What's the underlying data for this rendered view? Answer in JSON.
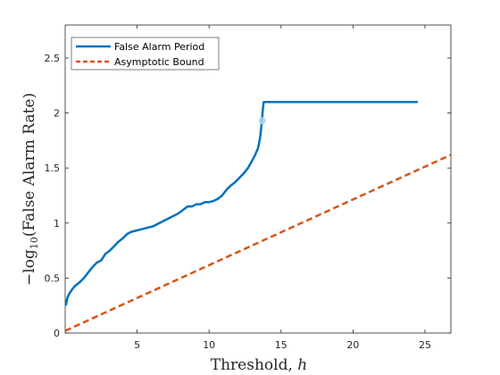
{
  "chart_data": {
    "type": "line",
    "title": "",
    "xlabel": "Threshold, ",
    "xlabel_var": "h",
    "ylabel_prefix": "−log",
    "ylabel_sub": "10",
    "ylabel_rest": "(False Alarm Rate)",
    "xlim": [
      0,
      26.8
    ],
    "ylim": [
      0,
      2.8
    ],
    "xticks": [
      5,
      10,
      15,
      20,
      25
    ],
    "yticks": [
      0,
      0.5,
      1,
      1.5,
      2,
      2.5
    ],
    "xtick_labels": [
      "5",
      "10",
      "15",
      "20",
      "25"
    ],
    "ytick_labels": [
      "0",
      "0.5",
      "1",
      "1.5",
      "2",
      "2.5"
    ],
    "legend_position": "top-left",
    "series": [
      {
        "name": "False Alarm Period",
        "color": "#0072BD",
        "style": "solid",
        "x": [
          0.05,
          0.15,
          0.3,
          0.5,
          0.7,
          1.0,
          1.3,
          1.6,
          1.9,
          2.2,
          2.5,
          2.8,
          3.1,
          3.4,
          3.7,
          4.0,
          4.3,
          4.6,
          4.9,
          5.2,
          5.5,
          5.8,
          6.1,
          6.4,
          6.7,
          7.0,
          7.3,
          7.6,
          7.9,
          8.2,
          8.5,
          8.8,
          9.1,
          9.4,
          9.7,
          10.0,
          10.3,
          10.6,
          10.9,
          11.2,
          11.5,
          11.8,
          12.1,
          12.4,
          12.7,
          13.0,
          13.2,
          13.4,
          13.55,
          13.65,
          13.75,
          13.8,
          14.0,
          15.0,
          17.0,
          20.0,
          22.0,
          24.0,
          24.5
        ],
        "y": [
          0.25,
          0.32,
          0.36,
          0.4,
          0.43,
          0.46,
          0.5,
          0.55,
          0.6,
          0.64,
          0.66,
          0.72,
          0.75,
          0.79,
          0.83,
          0.86,
          0.9,
          0.92,
          0.93,
          0.94,
          0.95,
          0.96,
          0.97,
          0.99,
          1.01,
          1.03,
          1.05,
          1.07,
          1.09,
          1.12,
          1.15,
          1.15,
          1.17,
          1.17,
          1.19,
          1.19,
          1.2,
          1.22,
          1.25,
          1.3,
          1.34,
          1.37,
          1.41,
          1.45,
          1.5,
          1.57,
          1.62,
          1.68,
          1.78,
          1.9,
          2.05,
          2.1,
          2.1,
          2.1,
          2.1,
          2.1,
          2.1,
          2.1,
          2.1
        ]
      },
      {
        "name": "Asymptotic Bound",
        "color": "#D95319",
        "style": "dashed",
        "x": [
          0,
          26.8
        ],
        "y": [
          0.02,
          1.62
        ]
      }
    ],
    "annotations": [
      {
        "type": "marker",
        "x": 13.7,
        "y": 1.93,
        "color": "#A7D3F2"
      }
    ]
  }
}
